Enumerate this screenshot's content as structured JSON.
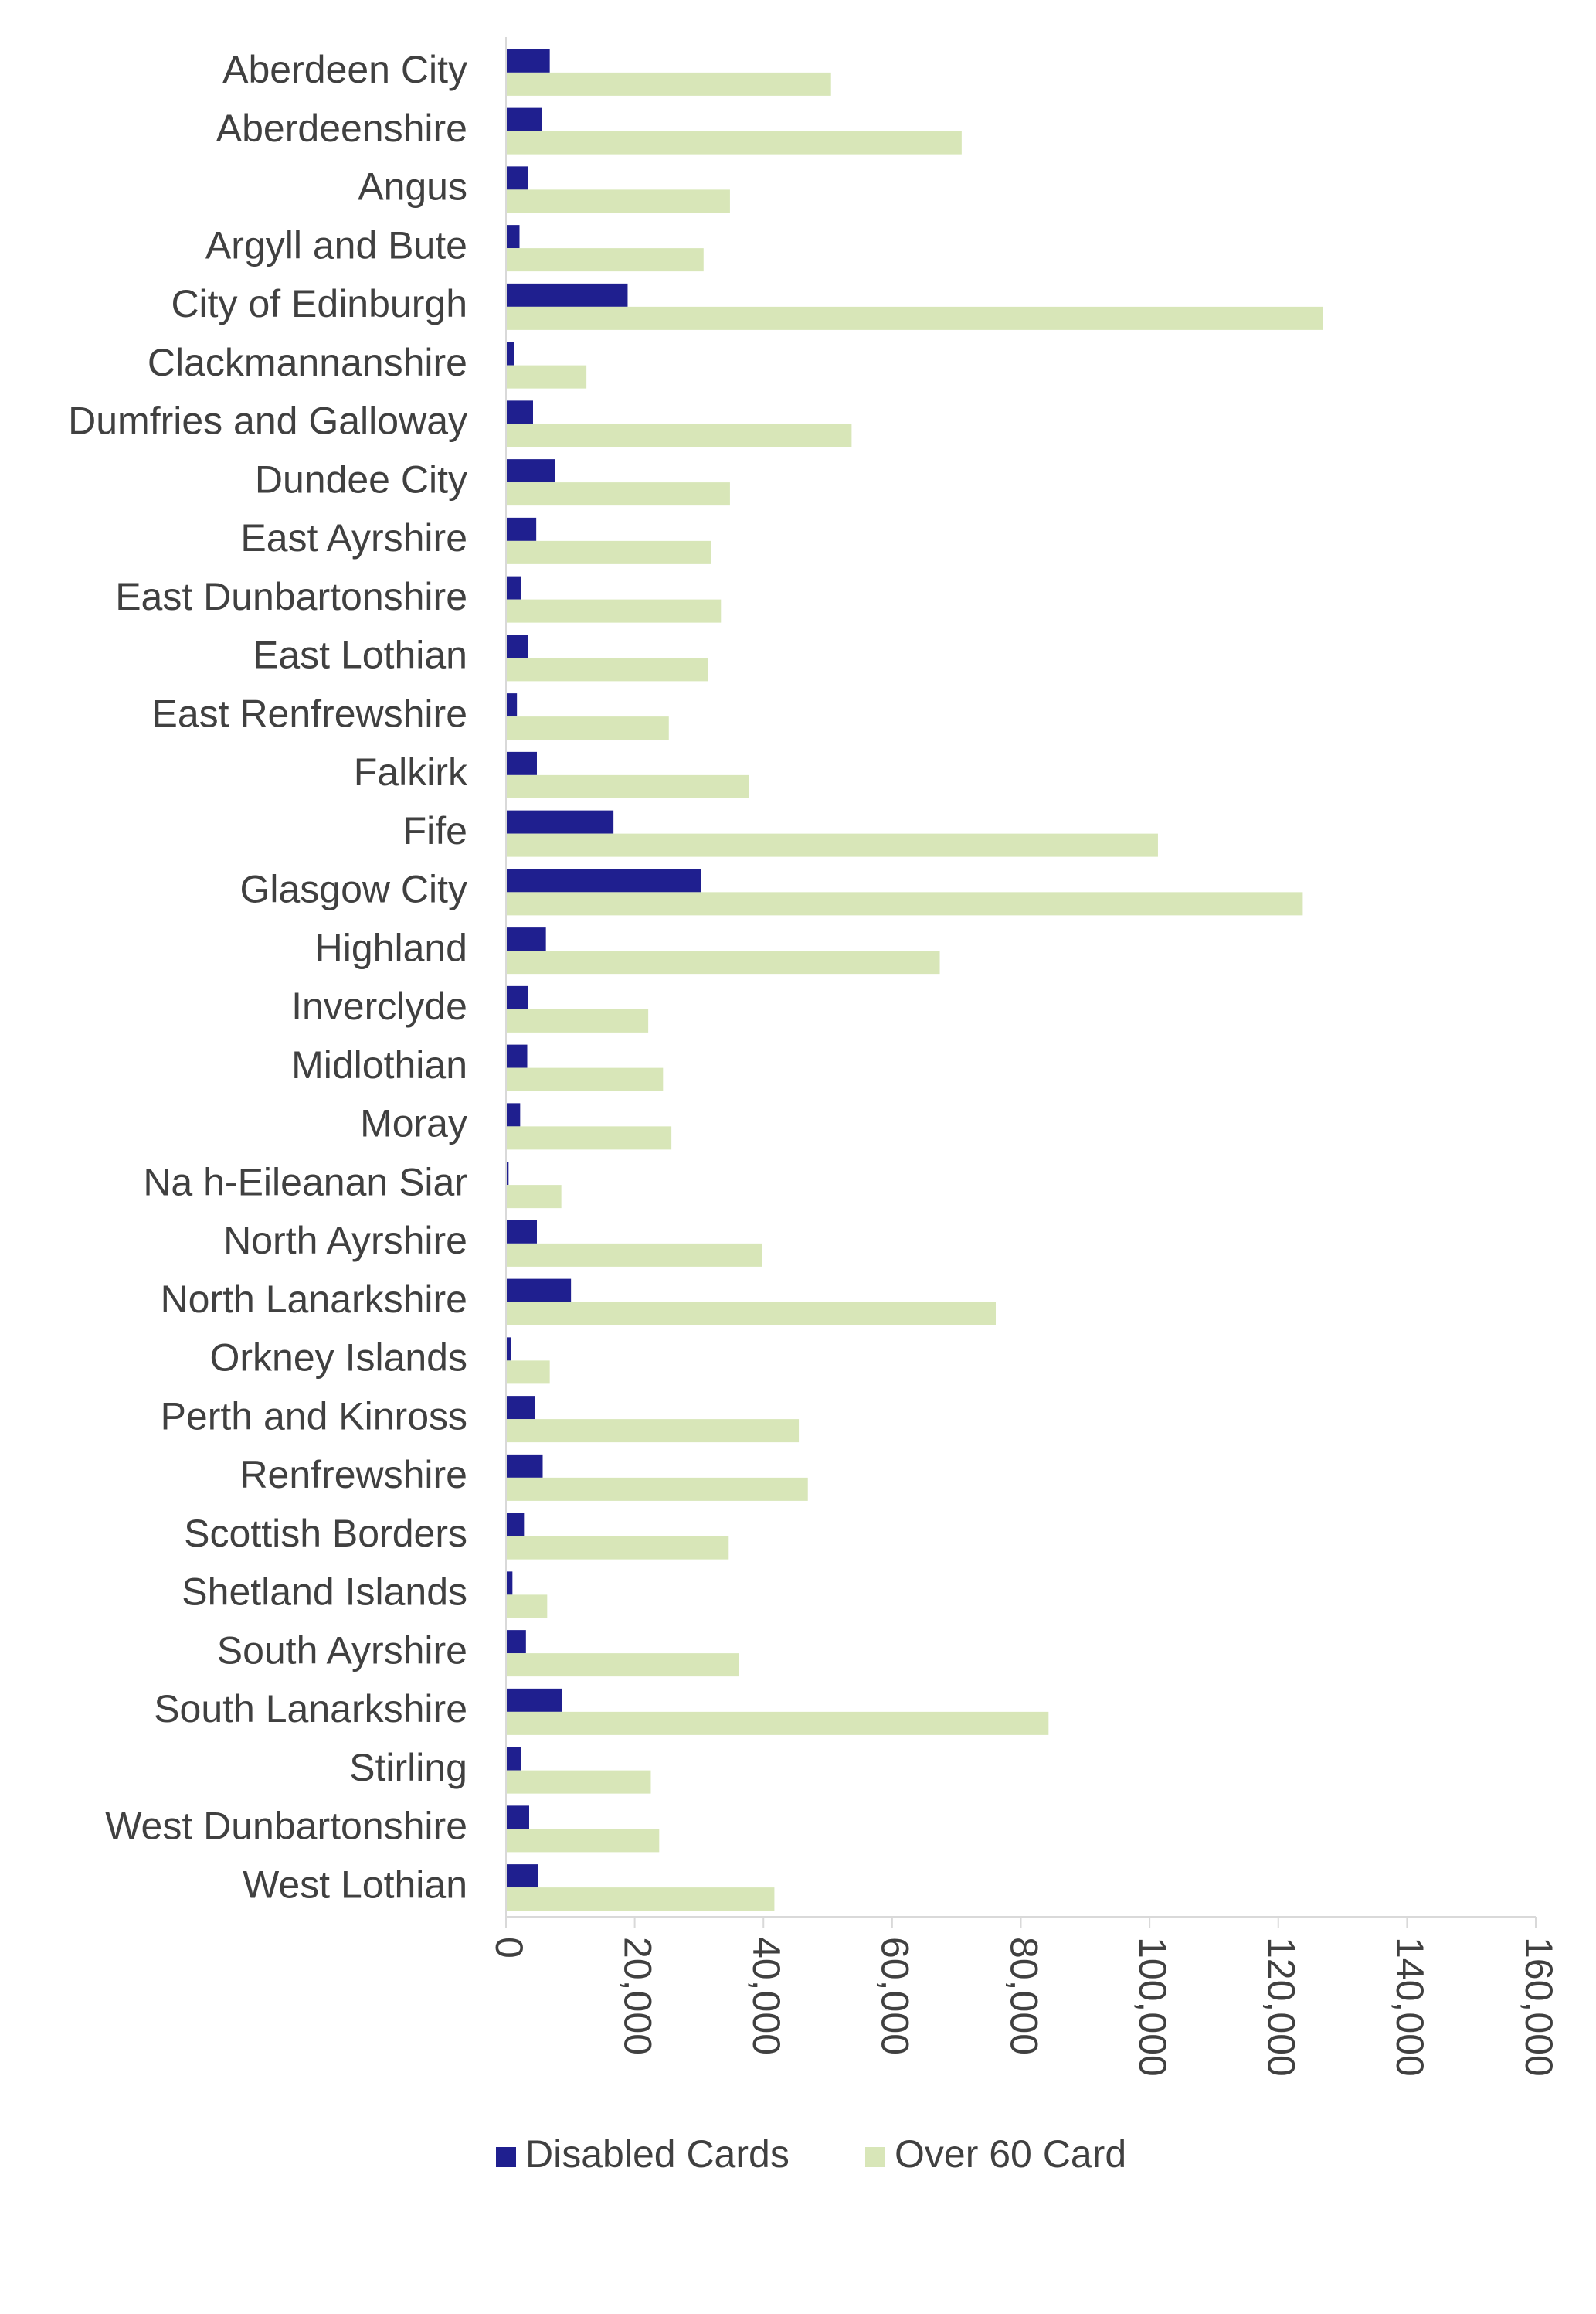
{
  "chart_data": {
    "type": "bar",
    "orientation": "horizontal",
    "title": "",
    "xlabel": "",
    "ylabel": "",
    "xlim": [
      0,
      160000
    ],
    "x_ticks": [
      0,
      20000,
      40000,
      60000,
      80000,
      100000,
      120000,
      140000,
      160000
    ],
    "x_tick_labels": [
      "0",
      "20,000",
      "40,000",
      "60,000",
      "80,000",
      "100,000",
      "120,000",
      "140,000",
      "160,000"
    ],
    "grid": false,
    "legend_position": "bottom",
    "categories": [
      "Aberdeen City",
      "Aberdeenshire",
      "Angus",
      "Argyll and Bute",
      "City of Edinburgh",
      "Clackmannanshire",
      "Dumfries and Galloway",
      "Dundee City",
      "East Ayrshire",
      "East Dunbartonshire",
      "East Lothian",
      "East Renfrewshire",
      "Falkirk",
      "Fife",
      "Glasgow City",
      "Highland",
      "Inverclyde",
      "Midlothian",
      "Moray",
      "Na h-Eileanan Siar",
      "North Ayrshire",
      "North Lanarkshire",
      "Orkney Islands",
      "Perth and Kinross",
      "Renfrewshire",
      "Scottish Borders",
      "Shetland Islands",
      "South Ayrshire",
      "South Lanarkshire",
      "Stirling",
      "West Dunbartonshire",
      "West Lothian"
    ],
    "series": [
      {
        "name": "Disabled Cards",
        "color": "#1f1f8f",
        "values": [
          6800,
          5600,
          3400,
          2100,
          18900,
          1200,
          4200,
          7600,
          4700,
          2300,
          3400,
          1700,
          4800,
          16700,
          30300,
          6200,
          3400,
          3300,
          2200,
          400,
          4800,
          10100,
          800,
          4500,
          5700,
          2800,
          1000,
          3100,
          8700,
          2300,
          3600,
          5000
        ]
      },
      {
        "name": "Over 60 Card",
        "color": "#d8e6b8",
        "values": [
          50500,
          70800,
          34800,
          30700,
          126900,
          12500,
          53700,
          34800,
          31900,
          33400,
          31400,
          25300,
          37800,
          101300,
          123800,
          67400,
          22100,
          24400,
          25700,
          8600,
          39800,
          76100,
          6800,
          45500,
          46900,
          34600,
          6400,
          36200,
          84300,
          22500,
          23800,
          41700
        ]
      }
    ]
  }
}
